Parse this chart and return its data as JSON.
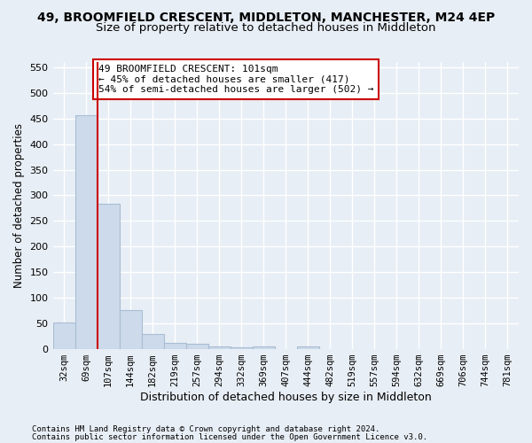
{
  "title1": "49, BROOMFIELD CRESCENT, MIDDLETON, MANCHESTER, M24 4EP",
  "title2": "Size of property relative to detached houses in Middleton",
  "xlabel": "Distribution of detached houses by size in Middleton",
  "ylabel": "Number of detached properties",
  "bar_labels": [
    "32sqm",
    "69sqm",
    "107sqm",
    "144sqm",
    "182sqm",
    "219sqm",
    "257sqm",
    "294sqm",
    "332sqm",
    "369sqm",
    "407sqm",
    "444sqm",
    "482sqm",
    "519sqm",
    "557sqm",
    "594sqm",
    "632sqm",
    "669sqm",
    "706sqm",
    "744sqm",
    "781sqm"
  ],
  "bar_values": [
    52,
    457,
    283,
    77,
    30,
    13,
    10,
    5,
    4,
    5,
    0,
    5,
    0,
    0,
    0,
    0,
    0,
    0,
    0,
    0,
    0
  ],
  "bar_color": "#ccdaeb",
  "bar_edge_color": "#a8bdd4",
  "vline_color": "#cc0000",
  "annotation_text": "49 BROOMFIELD CRESCENT: 101sqm\n← 45% of detached houses are smaller (417)\n54% of semi-detached houses are larger (502) →",
  "annotation_box_color": "#ffffff",
  "annotation_box_edge": "#cc0000",
  "ylim": [
    0,
    560
  ],
  "yticks": [
    0,
    50,
    100,
    150,
    200,
    250,
    300,
    350,
    400,
    450,
    500,
    550
  ],
  "footnote1": "Contains HM Land Registry data © Crown copyright and database right 2024.",
  "footnote2": "Contains public sector information licensed under the Open Government Licence v3.0.",
  "background_color": "#e8eef5",
  "grid_color": "#ffffff",
  "title1_fontsize": 10,
  "title2_fontsize": 9.5,
  "xlabel_fontsize": 9,
  "ylabel_fontsize": 8.5,
  "footnote_fontsize": 6.5
}
